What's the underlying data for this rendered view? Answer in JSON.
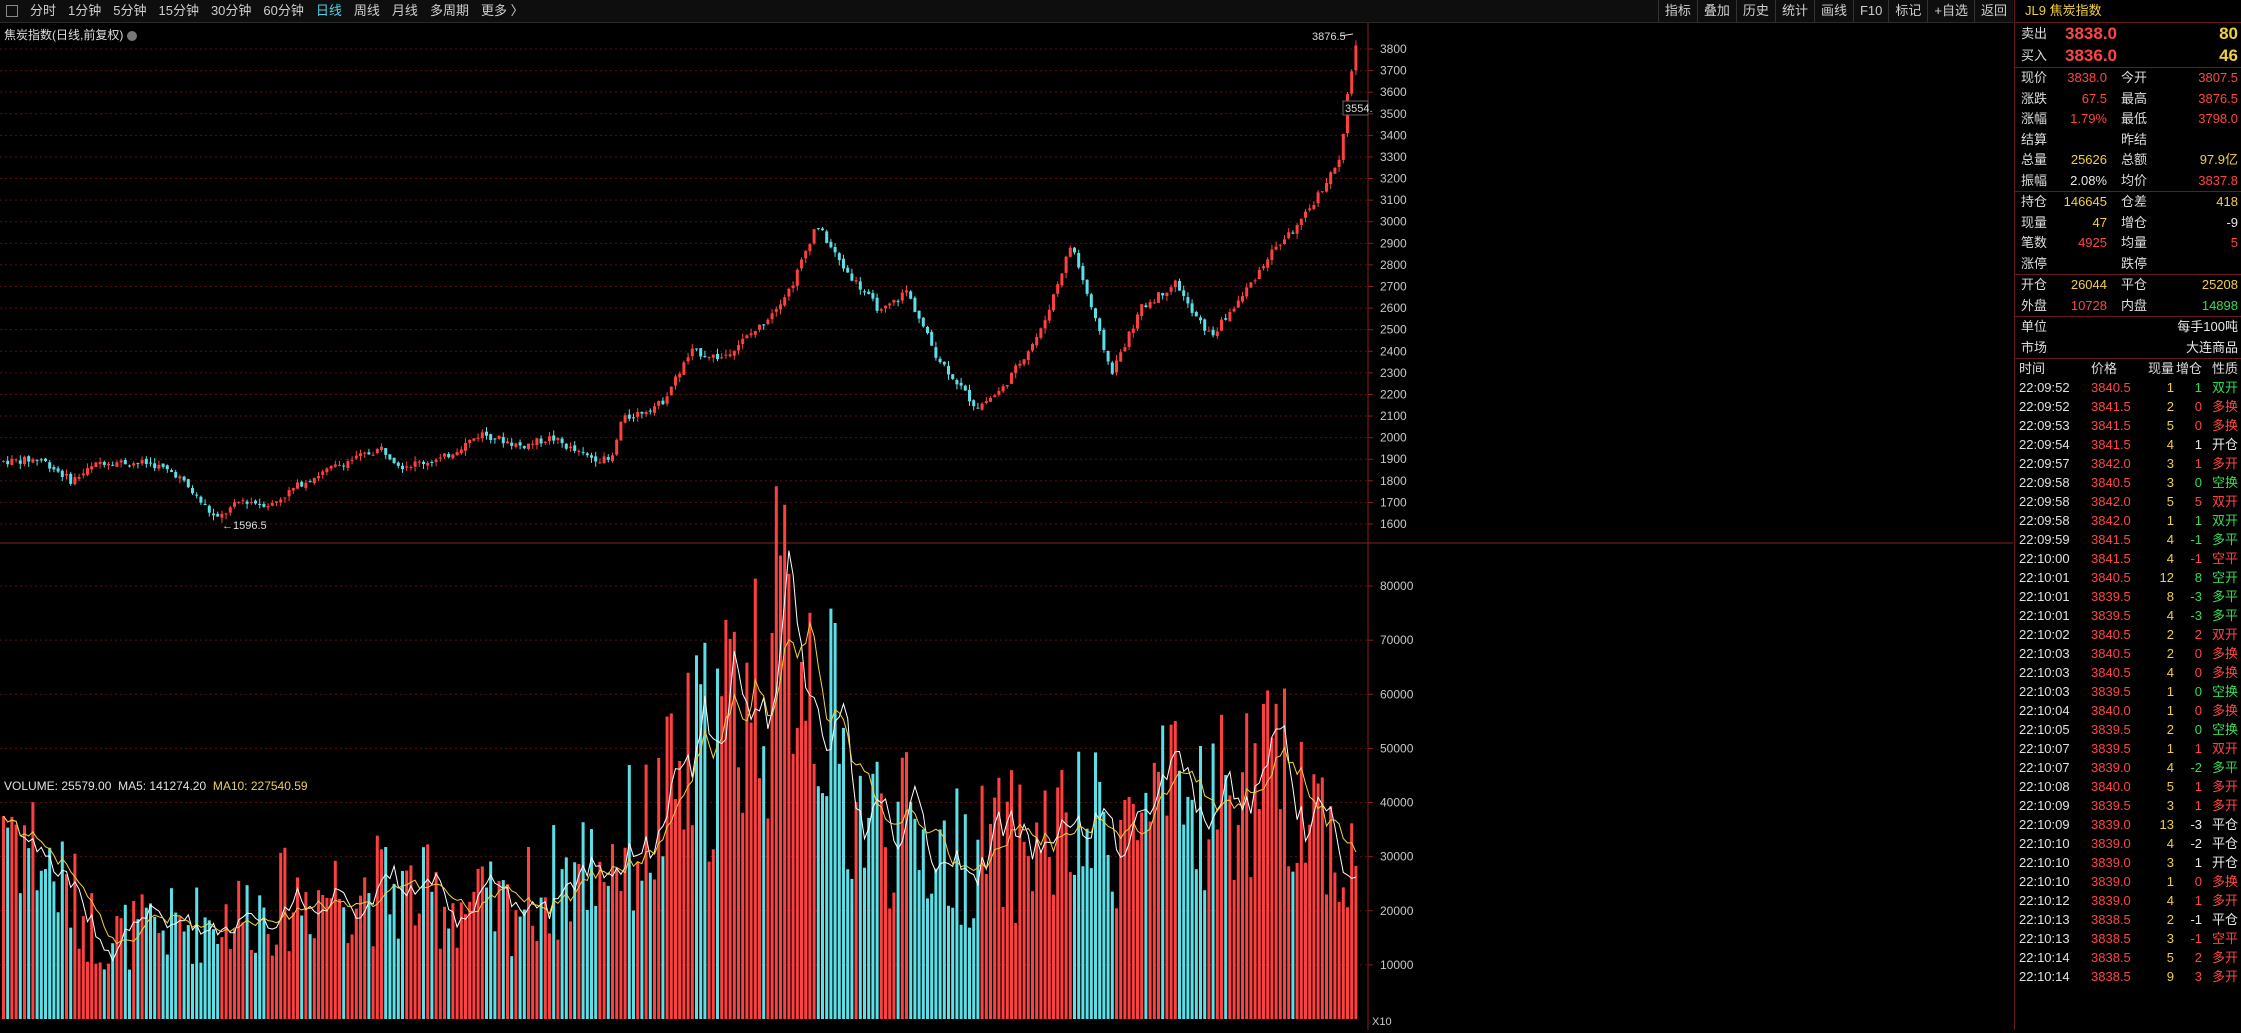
{
  "toolbar": {
    "periods": [
      "分时",
      "1分钟",
      "5分钟",
      "15分钟",
      "30分钟",
      "60分钟",
      "日线",
      "周线",
      "月线",
      "多周期",
      "更多 〉"
    ],
    "active_period": "日线",
    "tools": [
      "指标",
      "叠加",
      "历史",
      "统计",
      "画线",
      "F10",
      "标记",
      "+自选",
      "返回"
    ]
  },
  "main": {
    "title": "焦炭指数(日线,前复权)",
    "high_label": "3876.5",
    "low_label": "1596.5",
    "last_label": "3554.",
    "y_ticks": [
      3800,
      3700,
      3600,
      3500,
      3400,
      3300,
      3200,
      3100,
      3000,
      2900,
      2800,
      2700,
      2600,
      2500,
      2400,
      2300,
      2200,
      2100,
      2000,
      1900,
      1800,
      1700,
      1600
    ]
  },
  "volume": {
    "label": "VOLUME: 25579.00",
    "ma5": "MA5: 141274.20",
    "ma10": "MA10: 227540.59",
    "y_ticks": [
      80000,
      70000,
      60000,
      50000,
      40000,
      30000,
      20000,
      10000
    ],
    "scale_label": "X10"
  },
  "colors": {
    "up": "#ff4040",
    "down": "#5ce0e8",
    "ma5": "#ffffff",
    "ma10": "#f0d040",
    "grid": "#5a1010"
  },
  "chart_data": {
    "type": "candlestick",
    "title": "焦炭指数(日线,前复权)",
    "ylim": [
      1550,
      3900
    ],
    "approx_path": [
      [
        0,
        1890
      ],
      [
        40,
        1900
      ],
      [
        70,
        1800
      ],
      [
        100,
        1890
      ],
      [
        150,
        1880
      ],
      [
        175,
        1830
      ],
      [
        215,
        1620
      ],
      [
        240,
        1710
      ],
      [
        270,
        1690
      ],
      [
        300,
        1790
      ],
      [
        340,
        1880
      ],
      [
        380,
        1950
      ],
      [
        400,
        1870
      ],
      [
        440,
        1900
      ],
      [
        480,
        2020
      ],
      [
        520,
        1960
      ],
      [
        550,
        2000
      ],
      [
        580,
        1920
      ],
      [
        610,
        1890
      ],
      [
        620,
        2080
      ],
      [
        660,
        2160
      ],
      [
        690,
        2400
      ],
      [
        720,
        2370
      ],
      [
        760,
        2520
      ],
      [
        790,
        2700
      ],
      [
        815,
        2990
      ],
      [
        840,
        2800
      ],
      [
        880,
        2580
      ],
      [
        905,
        2680
      ],
      [
        935,
        2380
      ],
      [
        975,
        2140
      ],
      [
        1000,
        2220
      ],
      [
        1040,
        2500
      ],
      [
        1070,
        2900
      ],
      [
        1090,
        2600
      ],
      [
        1110,
        2300
      ],
      [
        1140,
        2600
      ],
      [
        1175,
        2720
      ],
      [
        1190,
        2580
      ],
      [
        1210,
        2470
      ],
      [
        1240,
        2650
      ],
      [
        1270,
        2860
      ],
      [
        1300,
        3000
      ],
      [
        1320,
        3150
      ],
      [
        1340,
        3300
      ],
      [
        1345,
        3554
      ],
      [
        1350,
        3700
      ],
      [
        1355,
        3838
      ]
    ],
    "volume_approx": [
      [
        0,
        40000
      ],
      [
        100,
        15000
      ],
      [
        200,
        18000
      ],
      [
        350,
        25000
      ],
      [
        500,
        20000
      ],
      [
        650,
        35000
      ],
      [
        700,
        50000
      ],
      [
        800,
        75000
      ],
      [
        850,
        40000
      ],
      [
        950,
        30000
      ],
      [
        1100,
        35000
      ],
      [
        1200,
        40000
      ],
      [
        1300,
        45000
      ],
      [
        1355,
        25579
      ]
    ]
  },
  "panel": {
    "title": "JL9 焦炭指数",
    "sell_label": "卖出",
    "sell_price": "3838.0",
    "sell_vol": "80",
    "buy_label": "买入",
    "buy_price": "3836.0",
    "buy_vol": "46",
    "quotes": [
      {
        "l1": "现价",
        "v1": "3838.0",
        "c1": "red",
        "l2": "今开",
        "v2": "3807.5",
        "c2": "red"
      },
      {
        "l1": "涨跌",
        "v1": "67.5",
        "c1": "red",
        "l2": "最高",
        "v2": "3876.5",
        "c2": "red"
      },
      {
        "l1": "涨幅",
        "v1": "1.79%",
        "c1": "red",
        "l2": "最低",
        "v2": "3798.0",
        "c2": "red"
      },
      {
        "l1": "结算",
        "v1": "",
        "c1": "white",
        "l2": "昨结",
        "v2": "",
        "c2": "white"
      },
      {
        "l1": "总量",
        "v1": "25626",
        "c1": "yellow",
        "l2": "总额",
        "v2": "97.9亿",
        "c2": "yellow"
      },
      {
        "l1": "振幅",
        "v1": "2.08%",
        "c1": "white",
        "l2": "均价",
        "v2": "3837.8",
        "c2": "red"
      }
    ],
    "position": [
      {
        "l1": "持仓",
        "v1": "146645",
        "c1": "yellow",
        "l2": "仓差",
        "v2": "418",
        "c2": "yellow"
      },
      {
        "l1": "现量",
        "v1": "47",
        "c1": "yellow",
        "l2": "增仓",
        "v2": "-9",
        "c2": "white"
      },
      {
        "l1": "笔数",
        "v1": "4925",
        "c1": "red",
        "l2": "均量",
        "v2": "5",
        "c2": "red"
      },
      {
        "l1": "涨停",
        "v1": "",
        "c1": "white",
        "l2": "跌停",
        "v2": "",
        "c2": "white"
      }
    ],
    "oc": [
      {
        "l1": "开仓",
        "v1": "26044",
        "c1": "yellow",
        "l2": "平仓",
        "v2": "25208",
        "c2": "yellow"
      },
      {
        "l1": "外盘",
        "v1": "10728",
        "c1": "red",
        "l2": "内盘",
        "v2": "14898",
        "c2": "green"
      }
    ],
    "unit_label": "单位",
    "unit_value": "每手100吨",
    "market_label": "市场",
    "market_value": "大连商品",
    "tick_header": {
      "time": "时间",
      "price": "价格",
      "vol": "现量",
      "chg": "增仓",
      "nat": "性质"
    },
    "ticks": [
      {
        "t": "22:09:52",
        "p": "3840.5",
        "pc": "red",
        "v": "1",
        "c": "1",
        "cc": "green",
        "n": "双开",
        "nc": "green"
      },
      {
        "t": "22:09:52",
        "p": "3841.5",
        "pc": "red",
        "v": "2",
        "c": "0",
        "cc": "red",
        "n": "多换",
        "nc": "red"
      },
      {
        "t": "22:09:53",
        "p": "3841.5",
        "pc": "red",
        "v": "5",
        "c": "0",
        "cc": "red",
        "n": "多换",
        "nc": "red"
      },
      {
        "t": "22:09:54",
        "p": "3841.5",
        "pc": "red",
        "v": "4",
        "c": "1",
        "cc": "white",
        "n": "开仓",
        "nc": "white"
      },
      {
        "t": "22:09:57",
        "p": "3842.0",
        "pc": "red",
        "v": "3",
        "c": "1",
        "cc": "red",
        "n": "多开",
        "nc": "red"
      },
      {
        "t": "22:09:58",
        "p": "3840.5",
        "pc": "red",
        "v": "3",
        "c": "0",
        "cc": "green",
        "n": "空换",
        "nc": "green"
      },
      {
        "t": "22:09:58",
        "p": "3842.0",
        "pc": "red",
        "v": "5",
        "c": "5",
        "cc": "red",
        "n": "双开",
        "nc": "red"
      },
      {
        "t": "22:09:58",
        "p": "3842.0",
        "pc": "red",
        "v": "1",
        "c": "1",
        "cc": "green",
        "n": "双开",
        "nc": "green"
      },
      {
        "t": "22:09:59",
        "p": "3841.5",
        "pc": "red",
        "v": "4",
        "c": "-1",
        "cc": "green",
        "n": "多平",
        "nc": "green"
      },
      {
        "t": "22:10:00",
        "p": "3841.5",
        "pc": "red",
        "v": "4",
        "c": "-1",
        "cc": "red",
        "n": "空平",
        "nc": "red"
      },
      {
        "t": "22:10:01",
        "p": "3840.5",
        "pc": "red",
        "v": "12",
        "c": "8",
        "cc": "green",
        "n": "空开",
        "nc": "green"
      },
      {
        "t": "22:10:01",
        "p": "3839.5",
        "pc": "red",
        "v": "8",
        "c": "-3",
        "cc": "green",
        "n": "多平",
        "nc": "green"
      },
      {
        "t": "22:10:01",
        "p": "3839.5",
        "pc": "red",
        "v": "4",
        "c": "-3",
        "cc": "green",
        "n": "多平",
        "nc": "green"
      },
      {
        "t": "22:10:02",
        "p": "3840.5",
        "pc": "red",
        "v": "2",
        "c": "2",
        "cc": "red",
        "n": "双开",
        "nc": "red"
      },
      {
        "t": "22:10:03",
        "p": "3840.5",
        "pc": "red",
        "v": "2",
        "c": "0",
        "cc": "red",
        "n": "多换",
        "nc": "red"
      },
      {
        "t": "22:10:03",
        "p": "3840.5",
        "pc": "red",
        "v": "4",
        "c": "0",
        "cc": "red",
        "n": "多换",
        "nc": "red"
      },
      {
        "t": "22:10:03",
        "p": "3839.5",
        "pc": "red",
        "v": "1",
        "c": "0",
        "cc": "green",
        "n": "空换",
        "nc": "green"
      },
      {
        "t": "22:10:04",
        "p": "3840.0",
        "pc": "red",
        "v": "1",
        "c": "0",
        "cc": "red",
        "n": "多换",
        "nc": "red"
      },
      {
        "t": "22:10:05",
        "p": "3839.5",
        "pc": "red",
        "v": "2",
        "c": "0",
        "cc": "green",
        "n": "空换",
        "nc": "green"
      },
      {
        "t": "22:10:07",
        "p": "3839.5",
        "pc": "red",
        "v": "1",
        "c": "1",
        "cc": "red",
        "n": "双开",
        "nc": "red"
      },
      {
        "t": "22:10:07",
        "p": "3839.0",
        "pc": "red",
        "v": "4",
        "c": "-2",
        "cc": "green",
        "n": "多平",
        "nc": "green"
      },
      {
        "t": "22:10:08",
        "p": "3840.0",
        "pc": "red",
        "v": "5",
        "c": "1",
        "cc": "red",
        "n": "多开",
        "nc": "red"
      },
      {
        "t": "22:10:09",
        "p": "3839.5",
        "pc": "red",
        "v": "3",
        "c": "1",
        "cc": "red",
        "n": "多开",
        "nc": "red"
      },
      {
        "t": "22:10:09",
        "p": "3839.0",
        "pc": "red",
        "v": "13",
        "c": "-3",
        "cc": "white",
        "n": "平仓",
        "nc": "white"
      },
      {
        "t": "22:10:10",
        "p": "3839.0",
        "pc": "red",
        "v": "4",
        "c": "-2",
        "cc": "white",
        "n": "平仓",
        "nc": "white"
      },
      {
        "t": "22:10:10",
        "p": "3839.0",
        "pc": "red",
        "v": "3",
        "c": "1",
        "cc": "white",
        "n": "开仓",
        "nc": "white"
      },
      {
        "t": "22:10:10",
        "p": "3839.0",
        "pc": "red",
        "v": "1",
        "c": "0",
        "cc": "red",
        "n": "多换",
        "nc": "red"
      },
      {
        "t": "22:10:12",
        "p": "3839.0",
        "pc": "red",
        "v": "4",
        "c": "1",
        "cc": "red",
        "n": "多开",
        "nc": "red"
      },
      {
        "t": "22:10:13",
        "p": "3838.5",
        "pc": "red",
        "v": "2",
        "c": "-1",
        "cc": "white",
        "n": "平仓",
        "nc": "white"
      },
      {
        "t": "22:10:13",
        "p": "3838.5",
        "pc": "red",
        "v": "3",
        "c": "-1",
        "cc": "red",
        "n": "空平",
        "nc": "red"
      },
      {
        "t": "22:10:14",
        "p": "3838.5",
        "pc": "red",
        "v": "5",
        "c": "2",
        "cc": "red",
        "n": "多开",
        "nc": "red"
      },
      {
        "t": "22:10:14",
        "p": "3838.5",
        "pc": "red",
        "v": "9",
        "c": "3",
        "cc": "red",
        "n": "多开",
        "nc": "red"
      }
    ]
  }
}
